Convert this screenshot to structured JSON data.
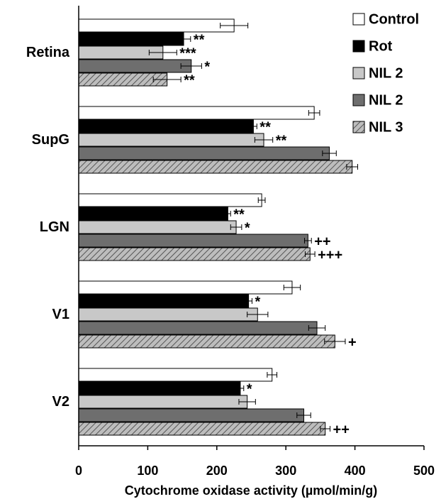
{
  "chart_data": {
    "type": "hbar",
    "x_label": "Cytochrome oxidase activity (µmol/min/g)",
    "categories": [
      "Retina",
      "SupG",
      "LGN",
      "V1",
      "V2"
    ],
    "xlim": [
      0,
      500
    ],
    "xticks": [
      0,
      100,
      200,
      300,
      400,
      500
    ],
    "legend": "top-right",
    "series": [
      {
        "name": "Control",
        "color": "#ffffff",
        "values": [
          225,
          341,
          265,
          309,
          280
        ],
        "errors": [
          20,
          8,
          5,
          12,
          7
        ],
        "annotations": [
          null,
          null,
          null,
          null,
          null
        ]
      },
      {
        "name": "Rot",
        "color": "#000000",
        "values": [
          152,
          253,
          216,
          246,
          234
        ],
        "errors": [
          10,
          5,
          4,
          5,
          5
        ],
        "annotations": [
          "**",
          "**",
          "**",
          "*",
          "*"
        ]
      },
      {
        "name": "NIL 2",
        "color": "#c8c8c8",
        "values": [
          122,
          268,
          228,
          259,
          244
        ],
        "errors": [
          20,
          13,
          8,
          15,
          12
        ],
        "annotations": [
          "***",
          "**",
          "*",
          null,
          null
        ]
      },
      {
        "name": "NIL 2",
        "color": "#6e6e6e",
        "values": [
          163,
          363,
          332,
          345,
          326
        ],
        "errors": [
          15,
          10,
          5,
          12,
          10
        ],
        "annotations": [
          "*",
          null,
          "++",
          null,
          null
        ]
      },
      {
        "name": "NIL 3",
        "color": "#bdbdbd",
        "hatch": true,
        "values": [
          128,
          396,
          335,
          371,
          357
        ],
        "errors": [
          20,
          8,
          7,
          15,
          7
        ],
        "annotations": [
          "**",
          null,
          "+++",
          "+",
          "++"
        ]
      }
    ]
  }
}
